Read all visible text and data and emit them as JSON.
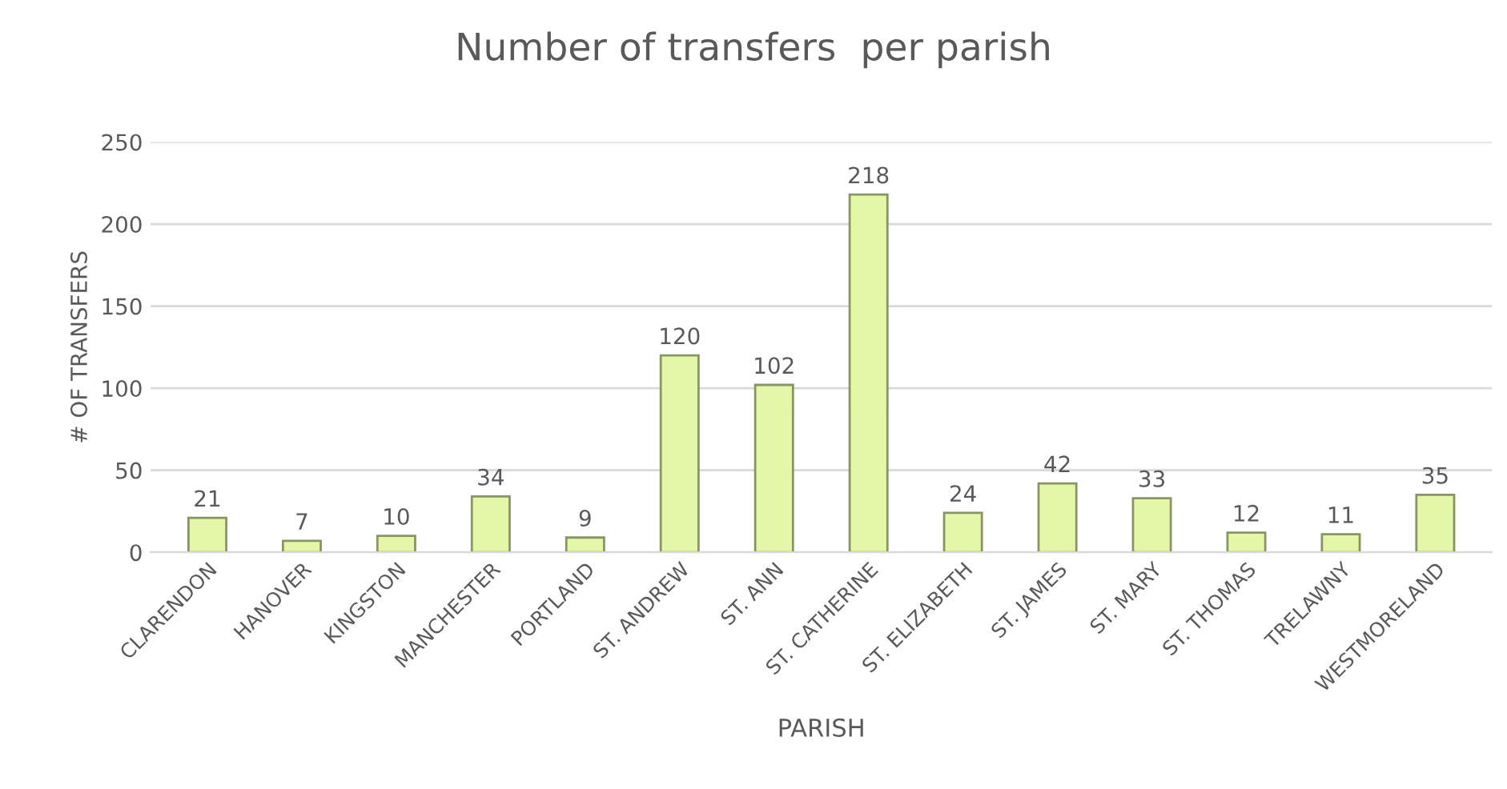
{
  "chart_data": {
    "type": "bar",
    "title": "Number of transfers  per parish",
    "xlabel": "PARISH",
    "ylabel": "# OF TRANSFERS",
    "categories": [
      "CLARENDON",
      "HANOVER",
      "KINGSTON",
      "MANCHESTER",
      "PORTLAND",
      "ST. ANDREW",
      "ST. ANN",
      "ST. CATHERINE",
      "ST. ELIZABETH",
      "ST. JAMES",
      "ST. MARY",
      "ST. THOMAS",
      "TRELAWNY",
      "WESTMORELAND"
    ],
    "values": [
      21,
      7,
      10,
      34,
      9,
      120,
      102,
      218,
      24,
      42,
      33,
      12,
      11,
      35
    ],
    "color": "#e4f7a8",
    "ylim": [
      0,
      250
    ],
    "yticks": [
      0,
      50,
      100,
      150,
      200,
      250
    ],
    "grid": "y",
    "data_labels": true,
    "legend": false
  }
}
